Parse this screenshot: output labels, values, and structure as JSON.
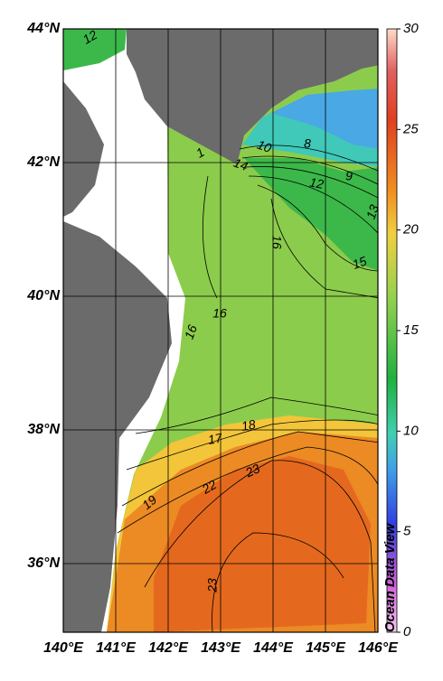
{
  "map": {
    "lon_ticks": [
      {
        "value": 140,
        "label": "140°E"
      },
      {
        "value": 141,
        "label": "141°E"
      },
      {
        "value": 142,
        "label": "142°E"
      },
      {
        "value": 143,
        "label": "143°E"
      },
      {
        "value": 144,
        "label": "144°E"
      },
      {
        "value": 145,
        "label": "145°E"
      },
      {
        "value": 146,
        "label": "146°E"
      }
    ],
    "lat_ticks": [
      {
        "value": 36,
        "label": "36°N"
      },
      {
        "value": 38,
        "label": "38°N"
      },
      {
        "value": 40,
        "label": "40°N"
      },
      {
        "value": 42,
        "label": "42°N"
      },
      {
        "value": 44,
        "label": "44°N"
      }
    ],
    "colorbar": {
      "lim": [
        0,
        30
      ],
      "ticks": [
        0,
        5,
        10,
        15,
        20,
        25,
        30
      ]
    },
    "contour_labels": [
      12,
      10,
      8,
      9,
      12,
      14,
      1,
      16,
      15,
      13,
      16,
      16,
      17,
      18,
      19,
      22,
      23,
      23
    ],
    "credit": "Ocean Data View"
  }
}
